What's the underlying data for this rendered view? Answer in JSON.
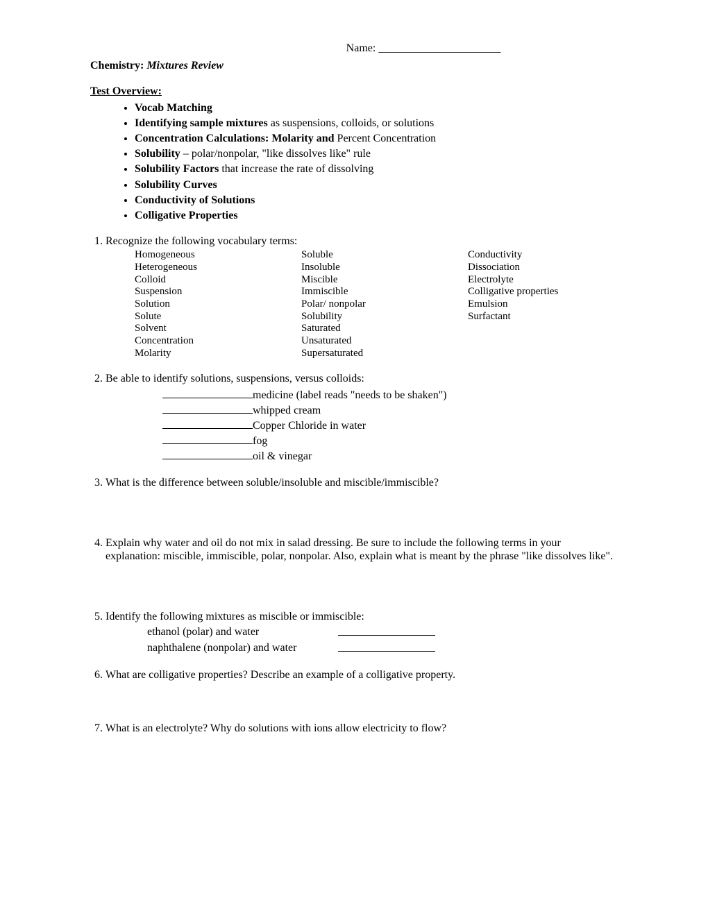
{
  "name_label": "Name:  ______________________",
  "title": {
    "subject": "Chemistry:  ",
    "topic": "Mixtures Review"
  },
  "overview_header": "Test Overview:",
  "bullets": [
    {
      "bold": "Vocab Matching",
      "rest": ""
    },
    {
      "bold": "Identifying sample mixtures",
      "rest": " as suspensions, colloids, or solutions"
    },
    {
      "bold": "Concentration Calculations: Molarity and ",
      "rest": "Percent Concentration"
    },
    {
      "bold": "Solubility",
      "rest": " – polar/nonpolar, \"like dissolves like\" rule"
    },
    {
      "bold": "Solubility Factors",
      "rest": " that increase the rate of dissolving"
    },
    {
      "bold": "Solubility Curves",
      "rest": ""
    },
    {
      "bold": "Conductivity of Solutions",
      "rest": ""
    },
    {
      "bold": "Colligative Properties",
      "rest": ""
    }
  ],
  "q1": {
    "prompt": "Recognize the following vocabulary terms:",
    "col1": [
      "Homogeneous",
      "Heterogeneous",
      "Colloid",
      "Suspension",
      "Solution",
      "Solute",
      "Solvent",
      "Concentration",
      "Molarity"
    ],
    "col2": [
      "Soluble",
      "Insoluble",
      "Miscible",
      "Immiscible",
      "Polar/ nonpolar",
      "Solubility",
      "Saturated",
      "Unsaturated",
      "Supersaturated"
    ],
    "col3": [
      "Conductivity",
      "Dissociation",
      "Electrolyte",
      "Colligative properties",
      "Emulsion",
      "Surfactant"
    ]
  },
  "q2": {
    "prompt": "Be able to identify solutions, suspensions, versus colloids:",
    "items": [
      "medicine (label reads \"needs to be shaken\")",
      "whipped cream",
      "Copper Chloride in water",
      "fog",
      "oil & vinegar"
    ]
  },
  "q3": "What is the difference between soluble/insoluble and miscible/immiscible?",
  "q4": "Explain why water and oil do not mix in salad dressing.  Be sure to include the following terms in your explanation: miscible, immiscible, polar, nonpolar.  Also, explain what is meant by the phrase \"like dissolves like\".",
  "q5": {
    "prompt": "Identify the following mixtures as miscible or immiscible:",
    "items": [
      "ethanol (polar) and water",
      "naphthalene (nonpolar) and water"
    ]
  },
  "q6": "What are colligative properties?  Describe an example of a colligative property.",
  "q7": " What is an electrolyte?  Why do solutions with ions allow electricity to flow?"
}
